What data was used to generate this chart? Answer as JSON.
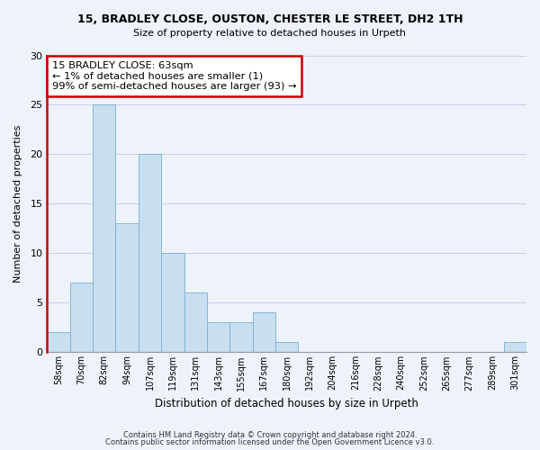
{
  "title1": "15, BRADLEY CLOSE, OUSTON, CHESTER LE STREET, DH2 1TH",
  "title2": "Size of property relative to detached houses in Urpeth",
  "xlabel": "Distribution of detached houses by size in Urpeth",
  "ylabel": "Number of detached properties",
  "bar_labels": [
    "58sqm",
    "70sqm",
    "82sqm",
    "94sqm",
    "107sqm",
    "119sqm",
    "131sqm",
    "143sqm",
    "155sqm",
    "167sqm",
    "180sqm",
    "192sqm",
    "204sqm",
    "216sqm",
    "228sqm",
    "240sqm",
    "252sqm",
    "265sqm",
    "277sqm",
    "289sqm",
    "301sqm"
  ],
  "bar_values": [
    2,
    7,
    25,
    13,
    20,
    10,
    6,
    3,
    3,
    4,
    1,
    0,
    0,
    0,
    0,
    0,
    0,
    0,
    0,
    0,
    1
  ],
  "bar_color": "#c8dff0",
  "bar_edge_color": "#7aafcf",
  "highlight_color": "#cc0000",
  "annotation_text_line1": "15 BRADLEY CLOSE: 63sqm",
  "annotation_text_line2": "← 1% of detached houses are smaller (1)",
  "annotation_text_line3": "99% of semi-detached houses are larger (93) →",
  "ylim": [
    0,
    30
  ],
  "yticks": [
    0,
    5,
    10,
    15,
    20,
    25,
    30
  ],
  "footer1": "Contains HM Land Registry data © Crown copyright and database right 2024.",
  "footer2": "Contains public sector information licensed under the Open Government Licence v3.0.",
  "bg_color": "#eef2fb",
  "grid_color": "#c5d0e8"
}
